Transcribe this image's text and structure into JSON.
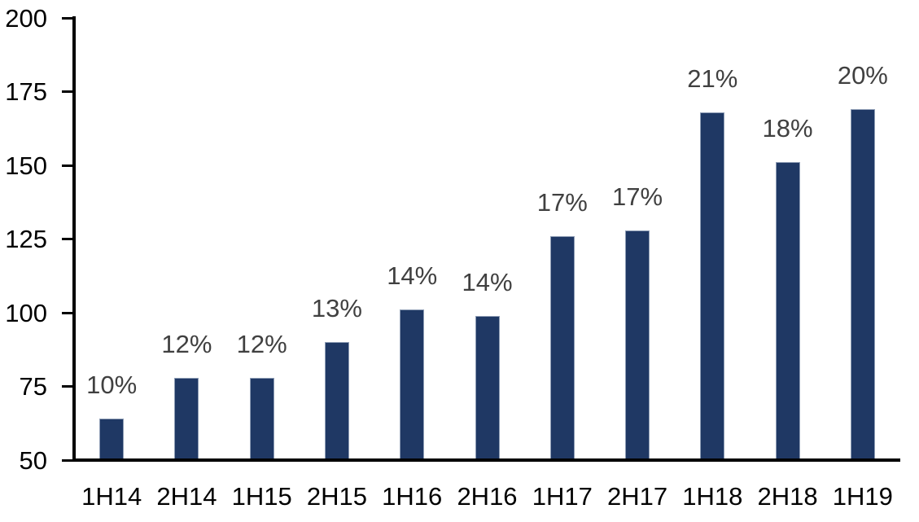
{
  "chart_data": {
    "type": "bar",
    "categories": [
      "1H14",
      "2H14",
      "1H15",
      "2H15",
      "1H16",
      "2H16",
      "1H17",
      "2H17",
      "1H18",
      "2H18",
      "1H19"
    ],
    "values": [
      64,
      78,
      78,
      90,
      101,
      99,
      126,
      128,
      168,
      151,
      169
    ],
    "data_labels": [
      "10%",
      "12%",
      "12%",
      "13%",
      "14%",
      "14%",
      "17%",
      "17%",
      "21%",
      "18%",
      "20%"
    ],
    "y_ticks": [
      50,
      75,
      100,
      125,
      150,
      175,
      200
    ],
    "ylim": [
      50,
      200
    ],
    "grid": false,
    "legend": false,
    "colors": {
      "bar_fill": "#1F3864",
      "bar_border": "#8E9DB5",
      "data_label": "#404040",
      "axis": "#000000",
      "background": "#FFFFFF"
    }
  }
}
